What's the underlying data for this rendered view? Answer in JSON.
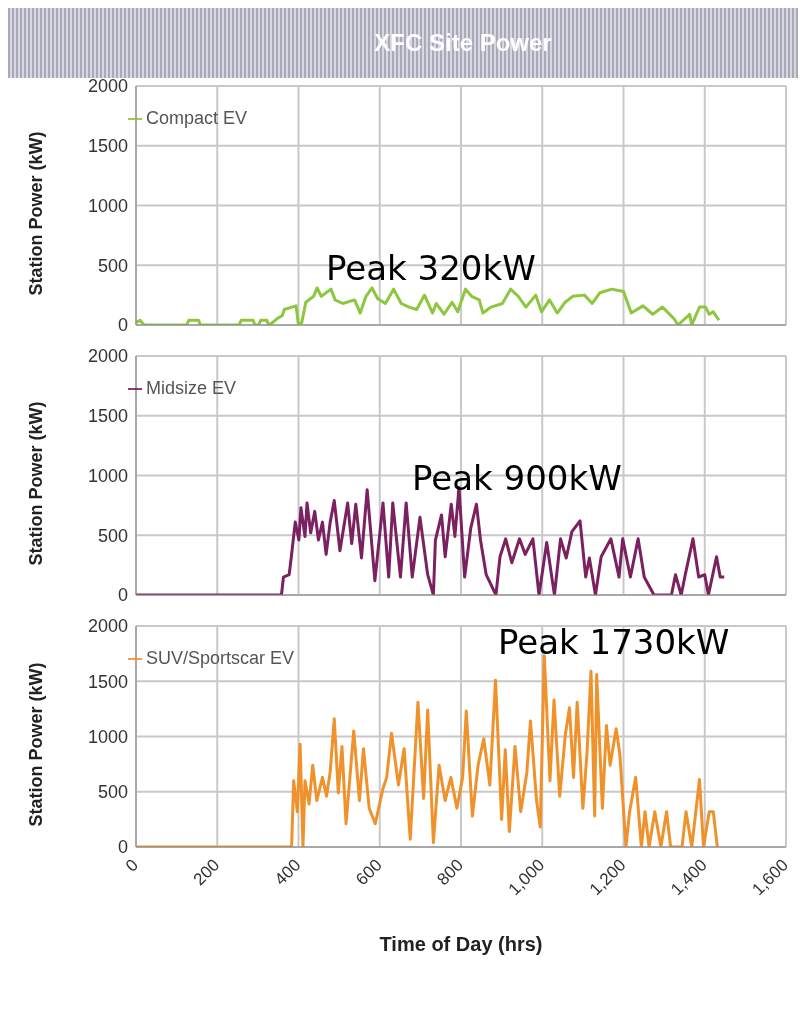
{
  "chart_data": [
    {
      "type": "line",
      "title": "XFC Site Power",
      "ylabel": "Station Power (kW)",
      "annotations": [
        "Peak 320kW"
      ],
      "xlim": [
        0,
        1600
      ],
      "xticks": [
        0,
        200,
        400,
        600,
        800,
        1000,
        1200,
        1400,
        1600
      ],
      "ylim": [
        0,
        2000
      ],
      "yticks": [
        0,
        500,
        1000,
        1500,
        2000
      ],
      "tick_labels": "y",
      "grid": true,
      "legend": "top left",
      "marker": "none",
      "series": [
        {
          "name": "Compact EV",
          "color": "#8dc63f",
          "x": [
            0,
            10,
            20,
            125,
            130,
            154,
            158,
            254,
            259,
            288,
            293,
            302,
            307,
            322,
            326,
            336,
            346,
            360,
            365,
            394,
            400,
            408,
            418,
            437,
            446,
            456,
            480,
            490,
            509,
            538,
            552,
            566,
            581,
            595,
            614,
            634,
            653,
            672,
            691,
            710,
            730,
            739,
            758,
            778,
            792,
            811,
            826,
            845,
            854,
            874,
            902,
            922,
            941,
            960,
            984,
            998,
            1018,
            1037,
            1056,
            1075,
            1104,
            1123,
            1142,
            1171,
            1200,
            1219,
            1248,
            1272,
            1296,
            1325,
            1334,
            1363,
            1368,
            1387,
            1402,
            1411,
            1421,
            1435
          ],
          "values": [
            20,
            40,
            0,
            0,
            40,
            40,
            0,
            0,
            40,
            40,
            0,
            0,
            40,
            40,
            0,
            20,
            50,
            80,
            130,
            160,
            0,
            20,
            190,
            240,
            310,
            240,
            300,
            210,
            180,
            210,
            100,
            240,
            310,
            220,
            180,
            300,
            180,
            150,
            130,
            250,
            100,
            180,
            90,
            190,
            110,
            300,
            240,
            210,
            100,
            150,
            180,
            300,
            240,
            150,
            250,
            110,
            210,
            100,
            190,
            240,
            250,
            180,
            270,
            300,
            280,
            100,
            160,
            90,
            150,
            50,
            0,
            90,
            0,
            150,
            150,
            90,
            110,
            40
          ]
        }
      ]
    },
    {
      "type": "line",
      "ylabel": "Station Power (kW)",
      "annotations": [
        "Peak 900kW"
      ],
      "xlim": [
        0,
        1600
      ],
      "xticks": [
        0,
        200,
        400,
        600,
        800,
        1000,
        1200,
        1400,
        1600
      ],
      "ylim": [
        0,
        2000
      ],
      "yticks": [
        0,
        500,
        1000,
        1500,
        2000
      ],
      "tick_labels": "y",
      "grid": true,
      "legend": "top left",
      "marker": "none",
      "series": [
        {
          "name": "Midsize EV",
          "color": "#7b2060",
          "x": [
            0,
            358,
            363,
            377,
            382,
            392,
            401,
            406,
            416,
            421,
            430,
            440,
            449,
            459,
            468,
            478,
            488,
            502,
            521,
            531,
            541,
            555,
            569,
            588,
            608,
            622,
            632,
            651,
            665,
            680,
            699,
            718,
            732,
            737,
            752,
            761,
            776,
            785,
            795,
            809,
            824,
            838,
            848,
            862,
            886,
            896,
            910,
            925,
            944,
            958,
            977,
            992,
            1011,
            1030,
            1045,
            1059,
            1073,
            1093,
            1107,
            1116,
            1131,
            1145,
            1169,
            1189,
            1198,
            1217,
            1236,
            1251,
            1275,
            1318,
            1328,
            1342,
            1352,
            1371,
            1385,
            1400,
            1409,
            1429,
            1438,
            1448
          ],
          "values": [
            0,
            0,
            150,
            170,
            310,
            610,
            460,
            730,
            490,
            770,
            520,
            700,
            460,
            610,
            340,
            610,
            790,
            370,
            770,
            430,
            760,
            310,
            880,
            120,
            770,
            150,
            770,
            150,
            770,
            150,
            650,
            170,
            0,
            460,
            670,
            320,
            760,
            490,
            900,
            150,
            560,
            760,
            460,
            170,
            0,
            320,
            470,
            270,
            470,
            340,
            470,
            0,
            440,
            0,
            470,
            310,
            530,
            620,
            150,
            310,
            0,
            320,
            470,
            150,
            470,
            150,
            470,
            150,
            0,
            0,
            170,
            0,
            170,
            470,
            150,
            170,
            0,
            320,
            150,
            150
          ]
        }
      ]
    },
    {
      "type": "line",
      "ylabel": "Station Power (kW)",
      "xlabel": "Time of Day (hrs)",
      "annotations": [
        "Peak 1730kW"
      ],
      "xlim": [
        0,
        1600
      ],
      "xticks": [
        0,
        200,
        400,
        600,
        800,
        {
          "value": 1000,
          "label": "1,000"
        },
        {
          "value": 1200,
          "label": "1,200"
        },
        {
          "value": 1400,
          "label": "1,400"
        },
        {
          "value": 1600,
          "label": "1,600"
        }
      ],
      "ylim": [
        0,
        2000
      ],
      "yticks": [
        0,
        500,
        1000,
        1500,
        2000
      ],
      "grid": true,
      "legend": "top left",
      "marker": "none",
      "series": [
        {
          "name": "SUV/Sportscar EV",
          "color": "#f0922b",
          "x": [
            0,
            383,
            388,
            397,
            404,
            411,
            416,
            426,
            435,
            445,
            459,
            469,
            478,
            488,
            498,
            507,
            517,
            536,
            550,
            560,
            574,
            589,
            608,
            617,
            629,
            646,
            660,
            675,
            694,
            708,
            718,
            732,
            746,
            761,
            775,
            790,
            804,
            813,
            828,
            842,
            856,
            871,
            885,
            900,
            909,
            919,
            933,
            947,
            962,
            971,
            986,
            995,
            1005,
            1019,
            1029,
            1043,
            1057,
            1067,
            1077,
            1086,
            1100,
            1110,
            1120,
            1129,
            1134,
            1148,
            1158,
            1167,
            1182,
            1191,
            1206,
            1215,
            1230,
            1244,
            1253,
            1263,
            1277,
            1292,
            1306,
            1316,
            1344,
            1354,
            1368,
            1387,
            1397,
            1411,
            1421,
            1431
          ],
          "values": [
            0,
            0,
            600,
            320,
            930,
            0,
            600,
            390,
            740,
            420,
            630,
            460,
            680,
            1160,
            490,
            910,
            210,
            1050,
            420,
            890,
            350,
            210,
            530,
            630,
            1030,
            560,
            890,
            70,
            1310,
            440,
            1240,
            40,
            740,
            420,
            630,
            350,
            630,
            1230,
            280,
            740,
            980,
            560,
            1510,
            250,
            880,
            140,
            910,
            320,
            670,
            1140,
            420,
            180,
            1730,
            600,
            1330,
            460,
            1020,
            1260,
            630,
            1310,
            350,
            840,
            1590,
            280,
            1560,
            350,
            1100,
            740,
            1070,
            840,
            0,
            320,
            630,
            0,
            320,
            0,
            320,
            0,
            320,
            0,
            0,
            320,
            0,
            610,
            0,
            320,
            320,
            0
          ]
        }
      ]
    }
  ]
}
